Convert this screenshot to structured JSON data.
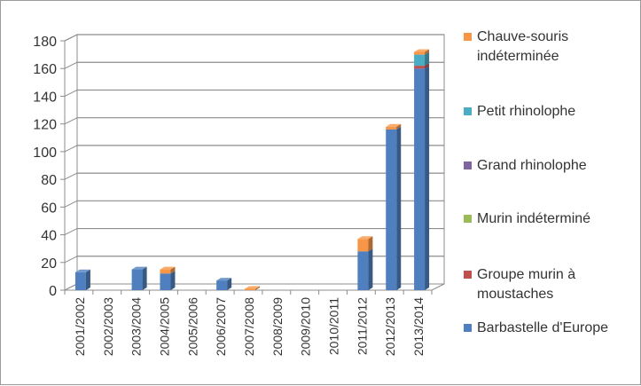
{
  "chart_data": {
    "type": "bar",
    "stacked": true,
    "three_d": true,
    "categories": [
      "2001/2002",
      "2002/2003",
      "2003/2004",
      "2004/2005",
      "2005/2006",
      "2006/2007",
      "2007/2008",
      "2008/2009",
      "2009/2010",
      "2010/2011",
      "2011/2012",
      "2012/2013",
      "2013/2014"
    ],
    "series": [
      {
        "name": "Barbastelle d'Europe",
        "color": "#4f7fbf",
        "values": [
          13,
          0,
          15,
          12,
          0,
          7,
          0,
          0,
          0,
          0,
          28,
          116,
          160
        ]
      },
      {
        "name": "Groupe murin à moustaches",
        "color": "#c0504d",
        "values": [
          0,
          0,
          0,
          0,
          0,
          0,
          0,
          0,
          0,
          0,
          0,
          0,
          2
        ]
      },
      {
        "name": "Murin indéterminé",
        "color": "#9bbb59",
        "values": [
          0,
          0,
          0,
          0,
          0,
          0,
          0,
          0,
          0,
          0,
          0,
          0,
          0
        ]
      },
      {
        "name": "Grand rhinolophe",
        "color": "#8064a2",
        "values": [
          0,
          0,
          0,
          0,
          0,
          0,
          0,
          0,
          0,
          0,
          0,
          0,
          0
        ]
      },
      {
        "name": "Petit rhinolophe",
        "color": "#4bacc6",
        "values": [
          0,
          0,
          0,
          0,
          0,
          0,
          0,
          0,
          0,
          0,
          0,
          0,
          8
        ]
      },
      {
        "name": "Chauve-souris indéterminée",
        "color": "#f79646",
        "values": [
          0,
          0,
          0,
          3,
          0,
          0,
          1,
          0,
          0,
          0,
          9,
          2,
          2
        ]
      }
    ],
    "ylim": [
      0,
      180
    ],
    "yticks": [
      0,
      20,
      40,
      60,
      80,
      100,
      120,
      140,
      160,
      180
    ],
    "grid": true,
    "legend_position": "right",
    "title": "",
    "xlabel": "",
    "ylabel": ""
  },
  "legend": {
    "items": [
      {
        "label": "Chauve-souris indéterminée",
        "color": "#f79646"
      },
      {
        "label": "Petit rhinolophe",
        "color": "#4bacc6"
      },
      {
        "label": "Grand rhinolophe",
        "color": "#8064a2"
      },
      {
        "label": "Murin indéterminé",
        "color": "#9bbb59"
      },
      {
        "label": "Groupe murin à moustaches",
        "color": "#c0504d"
      },
      {
        "label": "Barbastelle d'Europe",
        "color": "#4f7fbf"
      }
    ]
  }
}
